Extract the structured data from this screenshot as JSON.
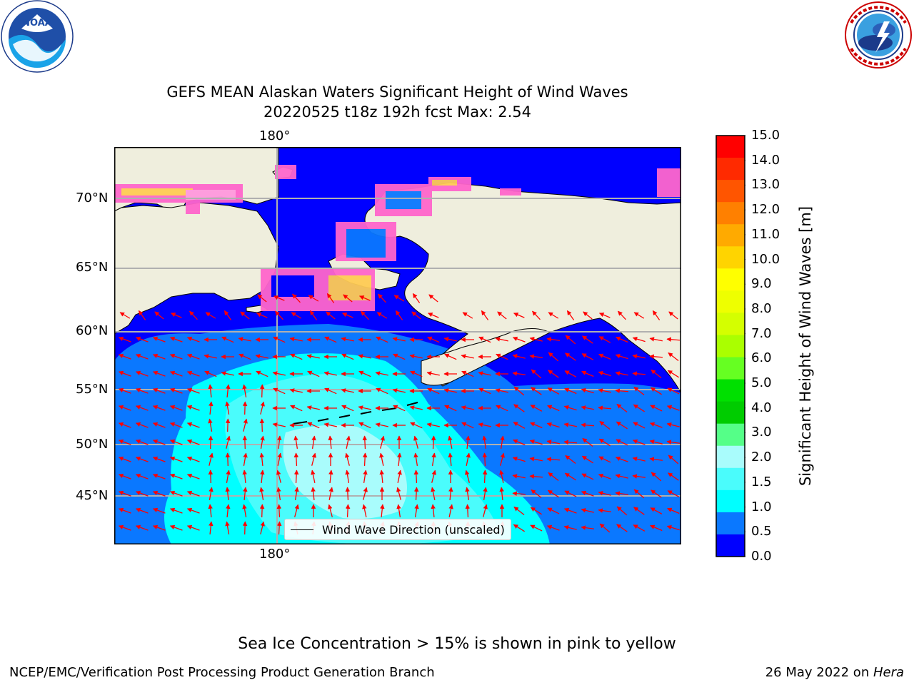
{
  "title": {
    "line1": "GEFS MEAN Alaskan Waters Significant Height of Wind Waves",
    "line2": "20220525 t18z 192h fcst   Max: 2.54"
  },
  "logos": {
    "noara": {
      "text": "NOAA",
      "ring_text": "NATIONAL OCEANIC AND ATMOSPHERIC ADMINISTRATION · U.S. DEPARTMENT OF COMMERCE"
    },
    "nws": {
      "ring_text": "NATIONAL WEATHER SERVICE"
    }
  },
  "map": {
    "longitude_label": "180°",
    "latitude_labels": [
      "70°N",
      "65°N",
      "60°N",
      "55°N",
      "50°N",
      "45°N"
    ],
    "legend_text": "Wind Wave Direction (unscaled)",
    "colors": {
      "land": "#efeedd",
      "wave_0_0_5": "#0000ff",
      "wave_0_5_1": "#0a78ff",
      "wave_1_1_5": "#00ffff",
      "wave_1_5_2": "#4afcfc",
      "wave_2_2_5": "#a9fcfc",
      "arrow": "#ff0000",
      "sea_ice_pink": "#ff66cc",
      "sea_ice_yellow": "#ffcc55",
      "grid": "#b0b0b0"
    }
  },
  "colorbar": {
    "label": "Significant Height of Wind Waves [m]",
    "ticks": [
      "15.0",
      "14.0",
      "13.0",
      "12.0",
      "11.0",
      "10.0",
      "9.0",
      "8.0",
      "7.0",
      "6.0",
      "5.0",
      "4.0",
      "3.0",
      "2.0",
      "1.5",
      "1.0",
      "0.5",
      "0.0"
    ],
    "colors": [
      "#ff0000",
      "#ff2a00",
      "#ff5500",
      "#ff8000",
      "#ffaa00",
      "#ffd400",
      "#ffff00",
      "#eeff00",
      "#d4ff00",
      "#aaff00",
      "#66ff22",
      "#00e000",
      "#00cc00",
      "#55ff88",
      "#a9fcfc",
      "#4afcfc",
      "#00ffff",
      "#0a78ff",
      "#0000ff"
    ]
  },
  "footer": {
    "note": "Sea Ice Concentration > 15% is shown in pink to yellow",
    "credit_left": "NCEP/EMC/Verification Post Processing Product Generation Branch",
    "credit_date": "26 May 2022 on ",
    "credit_machine": "Hera"
  }
}
